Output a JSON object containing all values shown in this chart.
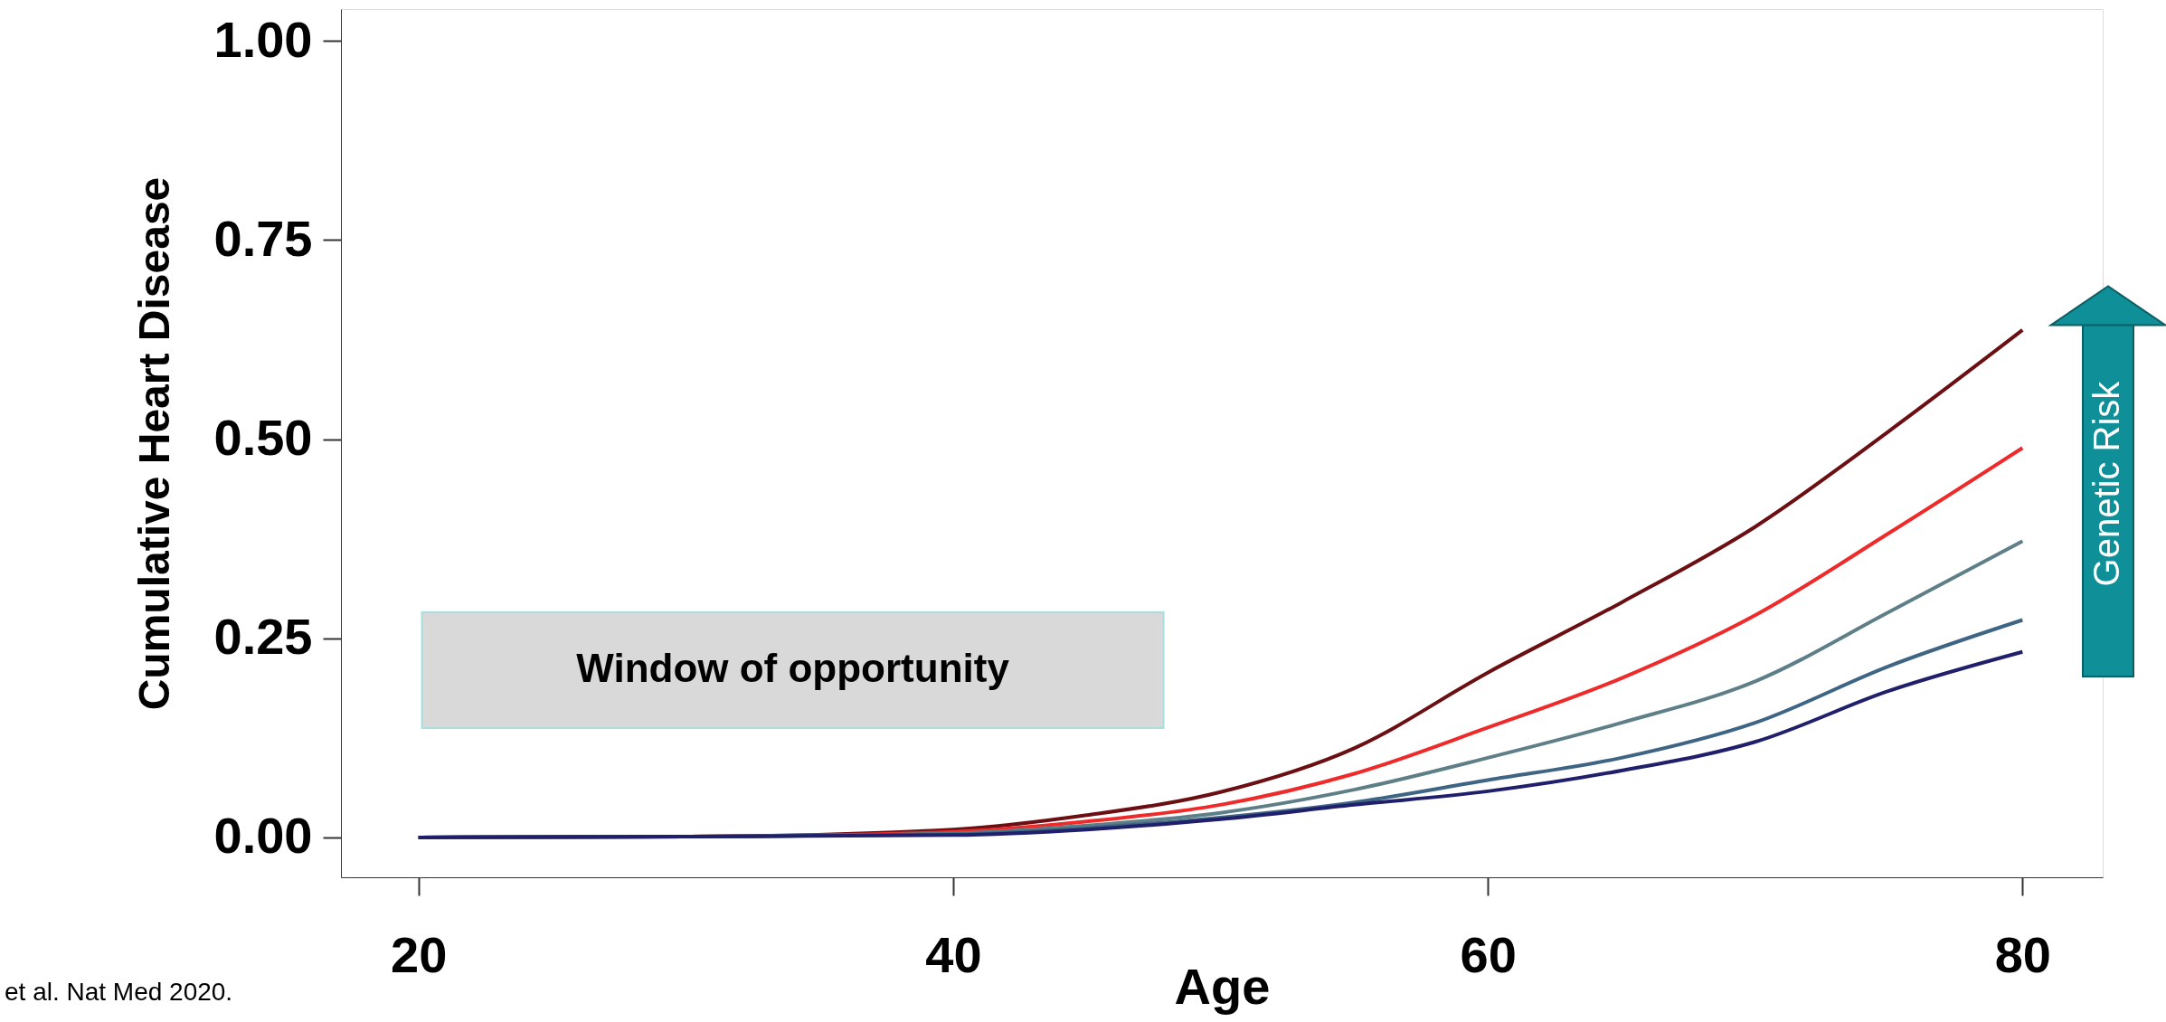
{
  "chart_data": {
    "type": "line",
    "xlabel": "Age",
    "ylabel": "Cumulative Heart Disease",
    "x": [
      20,
      30,
      40,
      45,
      50,
      55,
      60,
      65,
      70,
      75,
      80
    ],
    "series": [
      {
        "color": "#6b0f12",
        "values": [
          0,
          0.001,
          0.01,
          0.028,
          0.057,
          0.112,
          0.207,
          0.295,
          0.39,
          0.51,
          0.637
        ]
      },
      {
        "color": "#ee2a2a",
        "values": [
          0,
          0.001,
          0.007,
          0.02,
          0.041,
          0.08,
          0.138,
          0.2,
          0.279,
          0.382,
          0.489
        ]
      },
      {
        "color": "#5f7f88",
        "values": [
          0,
          0.001,
          0.005,
          0.015,
          0.031,
          0.06,
          0.1,
          0.144,
          0.196,
          0.283,
          0.372
        ]
      },
      {
        "color": "#3f6585",
        "values": [
          0,
          0.001,
          0.004,
          0.012,
          0.025,
          0.044,
          0.072,
          0.1,
          0.144,
          0.215,
          0.273
        ]
      },
      {
        "color": "#1f1f6b",
        "values": [
          0,
          0.001,
          0.003,
          0.01,
          0.023,
          0.041,
          0.058,
          0.084,
          0.12,
          0.184,
          0.233
        ]
      }
    ],
    "xlim": [
      17.1,
      83
    ],
    "ylim": [
      -0.05,
      1.04
    ],
    "xticks": [
      20,
      40,
      60,
      80
    ],
    "yticks": [
      {
        "value": 0,
        "label": "0.00"
      },
      {
        "value": 0.25,
        "label": "0.25"
      },
      {
        "value": 0.5,
        "label": "0.50"
      },
      {
        "value": 0.75,
        "label": "0.75"
      },
      {
        "value": 1,
        "label": "1.00"
      }
    ],
    "annotations": [
      "Window of opportunity",
      "Genetic Risk",
      "et al. Nat Med 2020."
    ],
    "grid": false,
    "line_style": "solid",
    "marker": "none"
  }
}
